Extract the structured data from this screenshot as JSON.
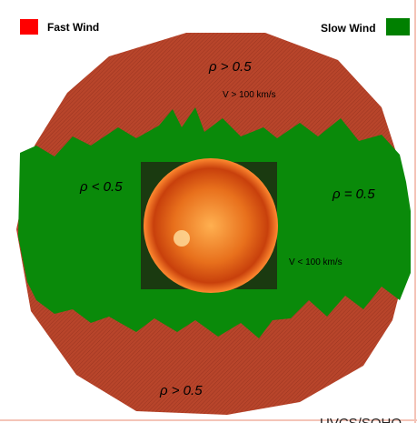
{
  "legend": [
    {
      "label": "Fast Wind",
      "color": "#ff0000"
    },
    {
      "label": "Slow Wind",
      "color": "#008000"
    }
  ],
  "annotations": {
    "top_density": "ρ > 0.5",
    "top_velocity": "V > 100 km/s",
    "left_density": "ρ < 0.5",
    "right_density": "ρ = 0.5",
    "right_velocity": "V < 100 km/s",
    "bottom_density": "ρ > 0.5"
  },
  "credit": "UVCS/SOHO"
}
